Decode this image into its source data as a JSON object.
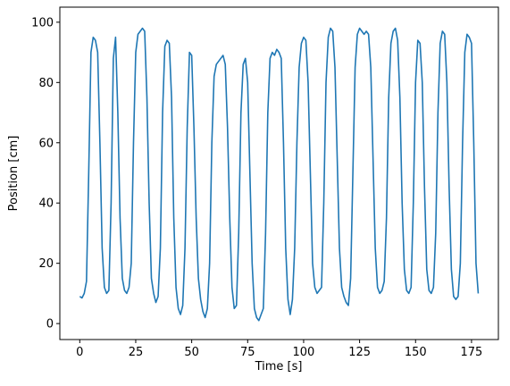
{
  "chart_data": {
    "type": "line",
    "x_label": "Time [s]",
    "y_label": "Position [cm]",
    "xlim": [
      -8.9,
      187
    ],
    "ylim": [
      -5.3,
      105
    ],
    "xticks": [
      0,
      25,
      50,
      75,
      100,
      125,
      150,
      175
    ],
    "yticks": [
      0,
      20,
      40,
      60,
      80,
      100
    ],
    "grid": false,
    "color": "#1f77b4",
    "x": [
      0,
      1,
      2,
      3,
      4,
      5,
      6,
      7,
      8,
      9,
      10,
      11,
      12,
      13,
      14,
      15,
      16,
      17,
      18,
      19,
      20,
      21,
      22,
      23,
      24,
      25,
      26,
      27,
      28,
      29,
      30,
      31,
      32,
      33,
      34,
      35,
      36,
      37,
      38,
      39,
      40,
      41,
      42,
      43,
      44,
      45,
      46,
      47,
      48,
      49,
      50,
      51,
      52,
      53,
      54,
      55,
      56,
      57,
      58,
      59,
      60,
      61,
      62,
      63,
      64,
      65,
      66,
      67,
      68,
      69,
      70,
      71,
      72,
      73,
      74,
      75,
      76,
      77,
      78,
      79,
      80,
      81,
      82,
      83,
      84,
      85,
      86,
      87,
      88,
      89,
      90,
      91,
      92,
      93,
      94,
      95,
      96,
      97,
      98,
      99,
      100,
      101,
      102,
      103,
      104,
      105,
      106,
      107,
      108,
      109,
      110,
      111,
      112,
      113,
      114,
      115,
      116,
      117,
      118,
      119,
      120,
      121,
      122,
      123,
      124,
      125,
      126,
      127,
      128,
      129,
      130,
      131,
      132,
      133,
      134,
      135,
      136,
      137,
      138,
      139,
      140,
      141,
      142,
      143,
      144,
      145,
      146,
      147,
      148,
      149,
      150,
      151,
      152,
      153,
      154,
      155,
      156,
      157,
      158,
      159,
      160,
      161,
      162,
      163,
      164,
      165,
      166,
      167,
      168,
      169,
      170,
      171,
      172,
      173,
      174,
      175,
      176,
      177,
      178
    ],
    "values": [
      9,
      8.5,
      10,
      14,
      50,
      90,
      95,
      94,
      90,
      60,
      25,
      12,
      10,
      11,
      40,
      88,
      95,
      70,
      35,
      15,
      11,
      10,
      12,
      20,
      60,
      90,
      96,
      97,
      98,
      97,
      75,
      40,
      15,
      10,
      7,
      9,
      25,
      70,
      92,
      94,
      93,
      75,
      35,
      12,
      5,
      3,
      6,
      25,
      65,
      90,
      89,
      65,
      35,
      15,
      8,
      4,
      2,
      5,
      20,
      60,
      82,
      86,
      87,
      88,
      89,
      86,
      65,
      35,
      12,
      5,
      6,
      30,
      70,
      86,
      88,
      80,
      50,
      20,
      5,
      2,
      1,
      3,
      5,
      30,
      70,
      88,
      90,
      89,
      91,
      90,
      88,
      60,
      25,
      8,
      3,
      8,
      25,
      60,
      85,
      93,
      95,
      94,
      80,
      50,
      20,
      12,
      10,
      11,
      12,
      40,
      80,
      95,
      98,
      97,
      85,
      55,
      25,
      12,
      9,
      7,
      6,
      15,
      50,
      85,
      96,
      98,
      97,
      96,
      97,
      96,
      85,
      55,
      25,
      12,
      10,
      11,
      14,
      35,
      75,
      93,
      97,
      98,
      94,
      75,
      40,
      18,
      11,
      10,
      12,
      40,
      80,
      94,
      93,
      80,
      45,
      18,
      11,
      10,
      12,
      30,
      70,
      93,
      97,
      96,
      80,
      45,
      18,
      9,
      8,
      9,
      20,
      60,
      90,
      96,
      95,
      93,
      60,
      20,
      10
    ]
  }
}
